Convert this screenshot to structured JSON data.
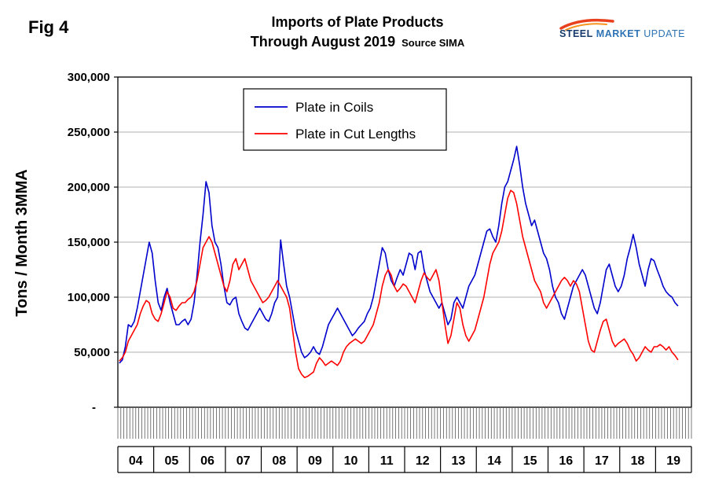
{
  "figure_label": "Fig 4",
  "title_line1": "Imports of Plate Products",
  "title_line2": "Through August 2019",
  "title_source": "Source SIMA",
  "logo": {
    "part1": "STEEL",
    "part2": "MARKET",
    "part3": "UPDATE",
    "swoosh_color": "#e8401c"
  },
  "chart_data": {
    "type": "line",
    "title": "Imports of Plate Products Through August 2019",
    "ylabel": "Tons / Month 3MMA",
    "ylim": [
      0,
      300000
    ],
    "grid": true,
    "legend_position": "top-center-inside",
    "y_ticks": [
      {
        "label": "300,000",
        "value": 300000
      },
      {
        "label": "250,000",
        "value": 250000
      },
      {
        "label": "200,000",
        "value": 200000
      },
      {
        "label": "150,000",
        "value": 150000
      },
      {
        "label": "100,000",
        "value": 100000
      },
      {
        "label": "50,000",
        "value": 50000
      },
      {
        "label": "-",
        "value": 0
      }
    ],
    "x_years": [
      "04",
      "05",
      "06",
      "07",
      "08",
      "09",
      "10",
      "11",
      "12",
      "13",
      "14",
      "15",
      "16",
      "17",
      "18",
      "19"
    ],
    "x_frequency": "monthly",
    "series": [
      {
        "name": "Plate in Coils",
        "color": "#0000cd",
        "values": [
          40000,
          43000,
          55000,
          75000,
          73000,
          78000,
          90000,
          105000,
          120000,
          135000,
          150000,
          140000,
          115000,
          95000,
          88000,
          100000,
          108000,
          95000,
          85000,
          75000,
          75000,
          78000,
          80000,
          75000,
          80000,
          95000,
          120000,
          150000,
          175000,
          205000,
          195000,
          165000,
          150000,
          145000,
          130000,
          110000,
          95000,
          93000,
          98000,
          100000,
          85000,
          78000,
          72000,
          70000,
          75000,
          80000,
          85000,
          90000,
          85000,
          80000,
          78000,
          85000,
          95000,
          100000,
          152000,
          130000,
          110000,
          100000,
          85000,
          70000,
          60000,
          50000,
          45000,
          47000,
          50000,
          55000,
          50000,
          48000,
          55000,
          65000,
          75000,
          80000,
          85000,
          90000,
          85000,
          80000,
          75000,
          70000,
          65000,
          68000,
          72000,
          75000,
          78000,
          85000,
          90000,
          100000,
          115000,
          130000,
          145000,
          140000,
          125000,
          115000,
          110000,
          118000,
          125000,
          120000,
          130000,
          140000,
          138000,
          125000,
          140000,
          142000,
          125000,
          115000,
          105000,
          100000,
          95000,
          90000,
          95000,
          85000,
          75000,
          80000,
          95000,
          100000,
          95000,
          90000,
          100000,
          110000,
          115000,
          120000,
          130000,
          140000,
          150000,
          160000,
          162000,
          155000,
          150000,
          165000,
          185000,
          200000,
          205000,
          215000,
          225000,
          237000,
          220000,
          200000,
          185000,
          175000,
          165000,
          170000,
          160000,
          150000,
          140000,
          135000,
          125000,
          110000,
          100000,
          95000,
          85000,
          80000,
          90000,
          100000,
          110000,
          115000,
          120000,
          125000,
          120000,
          110000,
          100000,
          90000,
          85000,
          95000,
          110000,
          125000,
          130000,
          120000,
          110000,
          105000,
          110000,
          120000,
          135000,
          145000,
          157000,
          145000,
          130000,
          120000,
          110000,
          125000,
          135000,
          133000,
          125000,
          118000,
          110000,
          105000,
          102000,
          100000,
          95000,
          92000
        ]
      },
      {
        "name": "Plate in Cut Lengths",
        "color": "#ff0000",
        "values": [
          42000,
          45000,
          50000,
          60000,
          65000,
          70000,
          75000,
          85000,
          92000,
          97000,
          95000,
          85000,
          80000,
          78000,
          85000,
          95000,
          105000,
          100000,
          90000,
          88000,
          92000,
          95000,
          95000,
          98000,
          100000,
          105000,
          115000,
          130000,
          145000,
          150000,
          155000,
          150000,
          140000,
          130000,
          120000,
          110000,
          105000,
          115000,
          130000,
          135000,
          125000,
          130000,
          135000,
          125000,
          115000,
          110000,
          105000,
          100000,
          95000,
          97000,
          100000,
          105000,
          110000,
          115000,
          110000,
          105000,
          100000,
          90000,
          70000,
          50000,
          35000,
          30000,
          27000,
          28000,
          30000,
          32000,
          40000,
          45000,
          42000,
          38000,
          40000,
          42000,
          40000,
          38000,
          42000,
          50000,
          55000,
          58000,
          60000,
          62000,
          60000,
          58000,
          60000,
          65000,
          70000,
          75000,
          85000,
          95000,
          110000,
          120000,
          125000,
          120000,
          110000,
          105000,
          108000,
          112000,
          110000,
          105000,
          100000,
          95000,
          105000,
          115000,
          122000,
          118000,
          115000,
          120000,
          125000,
          115000,
          95000,
          75000,
          58000,
          65000,
          80000,
          95000,
          90000,
          75000,
          65000,
          60000,
          65000,
          70000,
          80000,
          90000,
          100000,
          115000,
          130000,
          140000,
          145000,
          150000,
          160000,
          175000,
          190000,
          197000,
          195000,
          185000,
          170000,
          155000,
          145000,
          135000,
          125000,
          115000,
          110000,
          105000,
          95000,
          90000,
          95000,
          100000,
          105000,
          110000,
          115000,
          118000,
          115000,
          110000,
          115000,
          112000,
          105000,
          90000,
          75000,
          60000,
          52000,
          50000,
          60000,
          70000,
          78000,
          80000,
          70000,
          60000,
          55000,
          58000,
          60000,
          62000,
          58000,
          52000,
          48000,
          42000,
          45000,
          50000,
          55000,
          52000,
          50000,
          55000,
          55000,
          57000,
          55000,
          52000,
          55000,
          50000,
          47000,
          43000
        ]
      }
    ]
  }
}
